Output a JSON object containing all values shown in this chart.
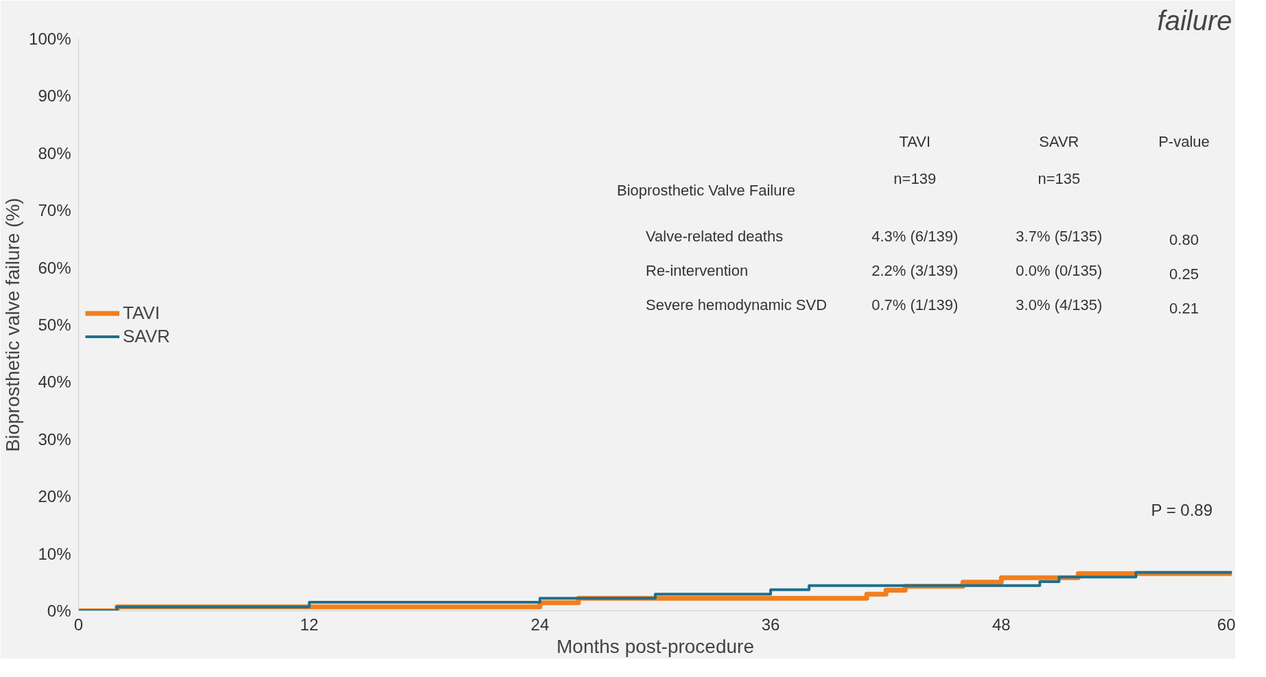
{
  "chart_data": {
    "type": "step",
    "title": "failure",
    "xlabel": "Months post-procedure",
    "ylabel": "Bioprosthetic valve failure (%)",
    "xlim": [
      0,
      60
    ],
    "xticks": [
      0,
      12,
      24,
      36,
      48,
      60
    ],
    "ylim": [
      0,
      100
    ],
    "yticks": [
      {
        "value": 0,
        "label": "0%"
      },
      {
        "value": 10,
        "label": "10%"
      },
      {
        "value": 20,
        "label": "20%"
      },
      {
        "value": 30,
        "label": "30%"
      },
      {
        "value": 40,
        "label": "40%"
      },
      {
        "value": 50,
        "label": "50%"
      },
      {
        "value": 60,
        "label": "60%"
      },
      {
        "value": 70,
        "label": "70%"
      },
      {
        "value": 80,
        "label": "80%"
      },
      {
        "value": 90,
        "label": "90%"
      },
      {
        "value": 100,
        "label": "100%"
      }
    ],
    "grid": false,
    "legend": "left",
    "marker": "none",
    "line_style": "solid",
    "series": [
      {
        "name": "TAVI",
        "color": "#f07f1e",
        "x": [
          0,
          2,
          24,
          26,
          41,
          42,
          43,
          46,
          48,
          52,
          60
        ],
        "values": [
          0,
          0.7,
          1.4,
          2.2,
          2.9,
          3.6,
          4.3,
          5.0,
          5.8,
          6.5,
          6.5
        ]
      },
      {
        "name": "SAVR",
        "color": "#1f6f8b",
        "x": [
          0,
          2,
          12,
          24,
          30,
          36,
          38,
          50,
          51,
          55,
          60
        ],
        "values": [
          0,
          0.7,
          1.5,
          2.2,
          2.9,
          3.7,
          4.4,
          5.1,
          5.9,
          6.7,
          6.7
        ]
      }
    ],
    "annotations": [
      "P = 0.89",
      "TAVI",
      "SAVR",
      "P-value",
      "n=139",
      "n=135",
      "Bioprosthetic Valve Failure",
      "Valve-related deaths",
      "4.3% (6/139)",
      "3.7% (5/135)",
      "0.80",
      "Re-intervention",
      "2.2% (3/139)",
      "0.0% (0/135)",
      "0.25",
      "Severe hemodynamic SVD",
      "0.7% (1/139)",
      "3.0% (4/135)",
      "0.21"
    ]
  }
}
